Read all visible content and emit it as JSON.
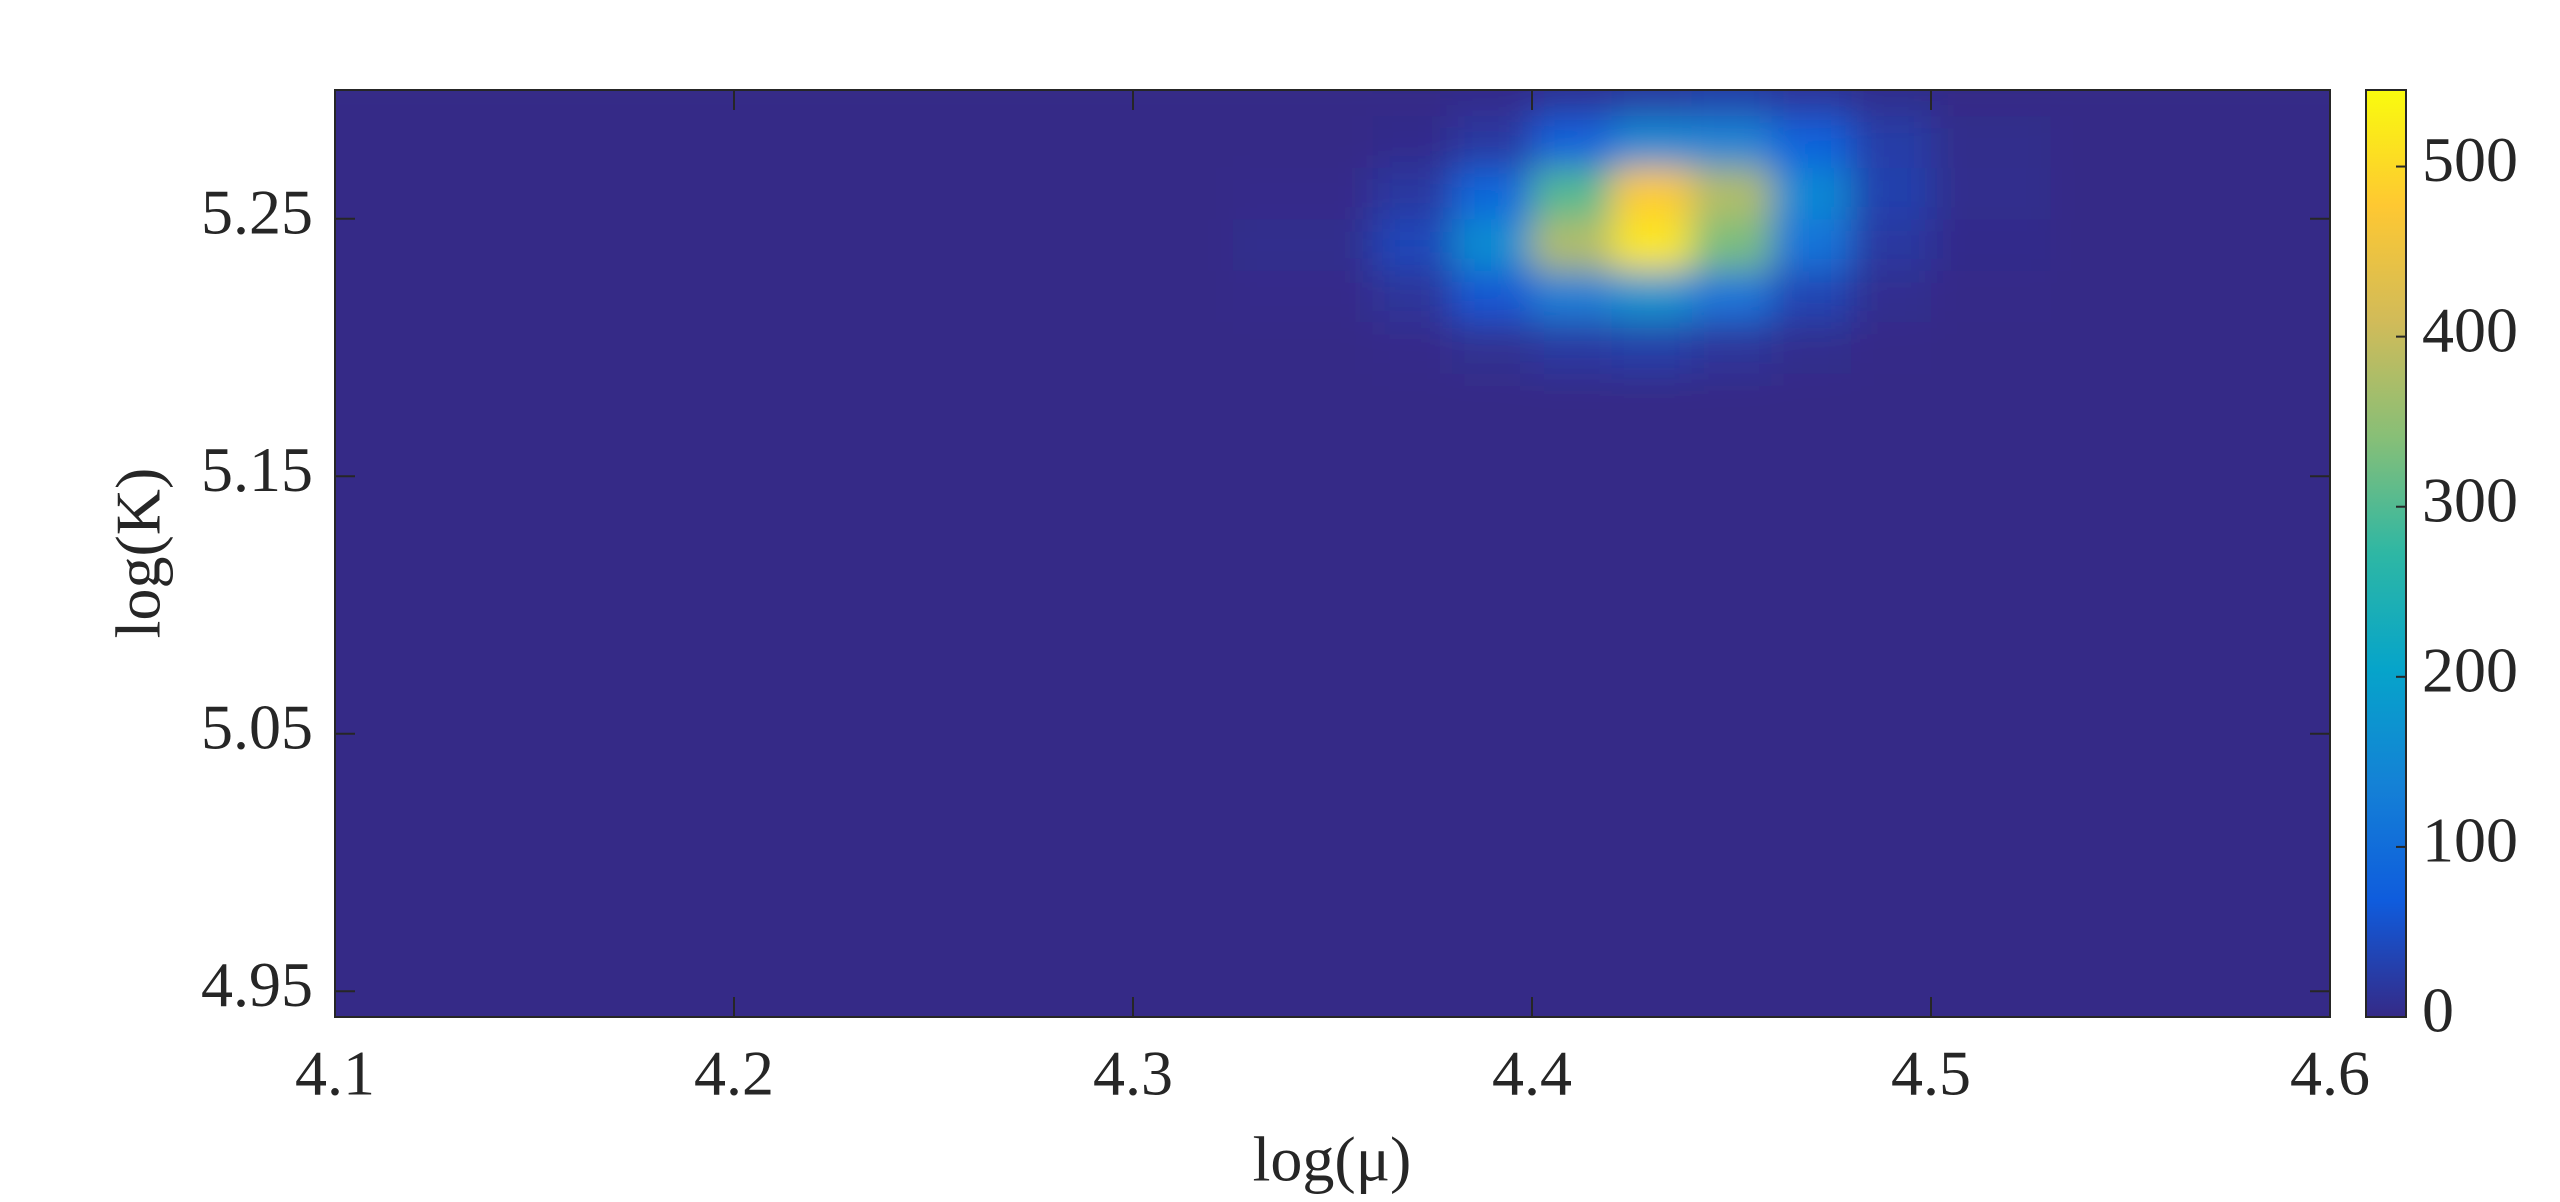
{
  "chart_data": {
    "type": "contour",
    "x_label": "log(μ)",
    "y_label": "log(K)",
    "xlim": [
      4.1,
      4.6
    ],
    "xticks": [
      4.1,
      4.2,
      4.3,
      4.4,
      4.5,
      4.6
    ],
    "ylim": [
      4.94,
      5.3
    ],
    "yticks": [
      4.95,
      5.05,
      5.15,
      5.25
    ],
    "x": [
      4.1,
      4.3,
      4.35,
      4.37,
      4.39,
      4.41,
      4.43,
      4.45,
      4.47,
      4.49,
      4.51,
      4.55,
      4.6
    ],
    "y": [
      4.94,
      5.1,
      5.18,
      5.2,
      5.22,
      5.24,
      5.26,
      5.28,
      5.3
    ],
    "z": [
      [
        0,
        0,
        0,
        0,
        0,
        0,
        0,
        0,
        0,
        0,
        0,
        0,
        0
      ],
      [
        0,
        0,
        0,
        0,
        0,
        0,
        0,
        0,
        0,
        0,
        0,
        0,
        0
      ],
      [
        0,
        0,
        0,
        0,
        0,
        0,
        0,
        0,
        0,
        0,
        0,
        0,
        0
      ],
      [
        0,
        0,
        0,
        2,
        8,
        20,
        25,
        15,
        5,
        1,
        0,
        0,
        0
      ],
      [
        0,
        0,
        2,
        15,
        60,
        130,
        170,
        110,
        35,
        6,
        1,
        0,
        0
      ],
      [
        0,
        0,
        5,
        40,
        160,
        380,
        520,
        330,
        110,
        20,
        3,
        0,
        0
      ],
      [
        0,
        0,
        2,
        20,
        90,
        300,
        480,
        380,
        150,
        30,
        5,
        0,
        0
      ],
      [
        0,
        0,
        0,
        3,
        20,
        80,
        150,
        140,
        80,
        25,
        4,
        0,
        0
      ],
      [
        0,
        0,
        0,
        0,
        2,
        10,
        20,
        25,
        15,
        5,
        0,
        0,
        0
      ]
    ],
    "colormap": "parula",
    "clim": [
      0,
      545
    ],
    "cticks": [
      0,
      100,
      200,
      300,
      400,
      500
    ]
  }
}
